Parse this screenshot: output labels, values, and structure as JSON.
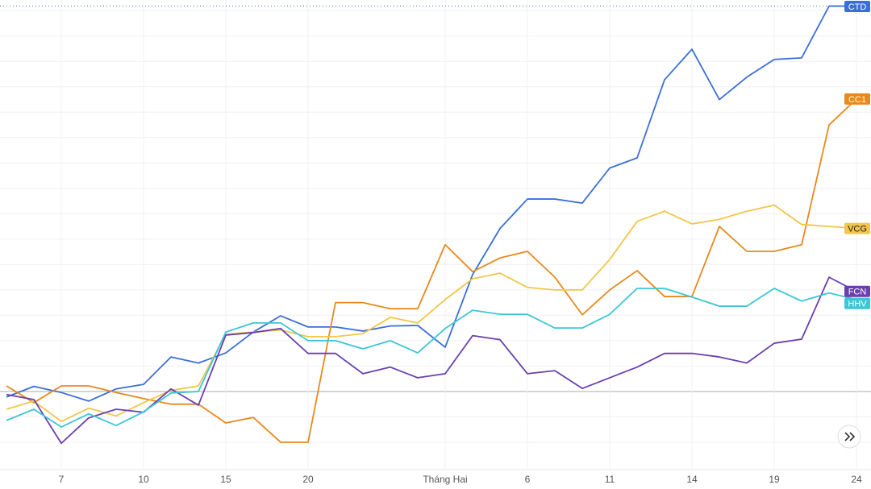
{
  "chart_data": {
    "type": "line",
    "categories": [
      null,
      null,
      "7",
      null,
      null,
      "10",
      null,
      null,
      "15",
      null,
      null,
      "20",
      null,
      null,
      null,
      null,
      "Tháng Hai",
      null,
      null,
      "6",
      null,
      null,
      "11",
      null,
      null,
      "14",
      null,
      null,
      "19",
      null,
      null,
      "24"
    ],
    "series": [
      {
        "name": "CTD",
        "color": "#3a6fd8",
        "values": [
          -1.1,
          1.0,
          -0.2,
          -1.9,
          0.5,
          1.4,
          6.8,
          5.6,
          7.6,
          11.7,
          14.9,
          12.7,
          12.7,
          11.9,
          12.9,
          13.0,
          8.7,
          23.0,
          32.1,
          37.9,
          37.9,
          37.1,
          44.0,
          46.0,
          61.4,
          67.4,
          57.5,
          61.9,
          65.4,
          65.7,
          75.9,
          75.9
        ]
      },
      {
        "name": "CC1",
        "color": "#e8891c",
        "values": [
          1.1,
          -2.2,
          1.1,
          1.1,
          -0.2,
          -1.4,
          -2.5,
          -2.5,
          -6.2,
          -5.1,
          -10.0,
          -10.0,
          17.5,
          17.5,
          16.3,
          16.3,
          28.9,
          23.6,
          26.3,
          27.6,
          22.5,
          15.1,
          20.0,
          23.8,
          18.7,
          18.7,
          32.5,
          27.6,
          27.6,
          28.9,
          52.5,
          57.6
        ]
      },
      {
        "name": "VCG",
        "color": "#f2c64a",
        "values": [
          -3.5,
          -1.9,
          -5.9,
          -3.3,
          -4.8,
          -2.2,
          0.2,
          1.1,
          11.3,
          11.7,
          12.1,
          10.8,
          10.8,
          11.4,
          14.6,
          13.5,
          18.1,
          22.2,
          23.3,
          20.5,
          20.0,
          20.0,
          26.0,
          33.5,
          35.5,
          33.0,
          33.9,
          35.5,
          36.7,
          32.9,
          32.5,
          32.1
        ]
      },
      {
        "name": "FCN",
        "color": "#6a3fb0",
        "values": [
          -0.6,
          -1.6,
          -10.2,
          -5.2,
          -3.5,
          -4.1,
          0.5,
          -2.7,
          11.1,
          11.6,
          12.4,
          7.5,
          7.5,
          3.5,
          4.8,
          2.7,
          3.5,
          11.0,
          10.2,
          3.5,
          4.1,
          0.6,
          2.7,
          4.8,
          7.5,
          7.5,
          6.8,
          5.6,
          9.5,
          10.3,
          22.5,
          19.7
        ]
      },
      {
        "name": "HHV",
        "color": "#3cc6d6",
        "values": [
          -5.7,
          -3.5,
          -7.0,
          -4.4,
          -6.7,
          -4.0,
          -0.3,
          0,
          11.7,
          13.5,
          13.5,
          10.0,
          10.0,
          8.4,
          10.0,
          7.6,
          12.4,
          16.0,
          15.2,
          15.2,
          12.5,
          12.5,
          15.2,
          20.3,
          20.3,
          18.6,
          16.8,
          16.8,
          20.3,
          17.8,
          19.4,
          18.1
        ]
      }
    ],
    "ylim": [
      -15.4,
      77.1
    ],
    "yticks": [
      -10,
      -5,
      0,
      5,
      10,
      15,
      20,
      25,
      30,
      35,
      40,
      45,
      50,
      55,
      60,
      65,
      70,
      75
    ],
    "grid": true
  }
}
